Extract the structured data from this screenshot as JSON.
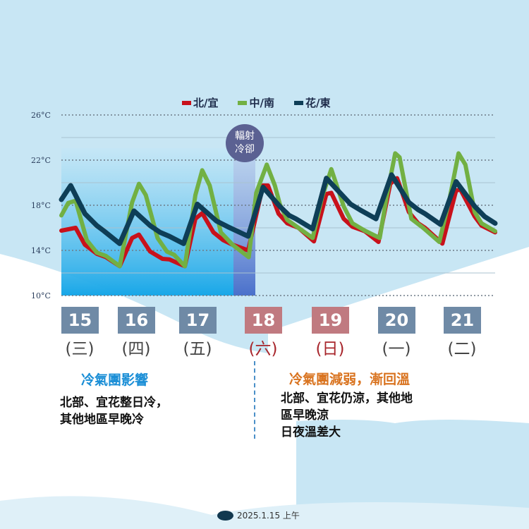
{
  "chart_data": {
    "type": "line",
    "ylim": [
      10,
      26
    ],
    "yticks": [
      "26°C",
      "22°C",
      "18°C",
      "14°C",
      "10°C"
    ],
    "ytick_values": [
      26,
      22,
      18,
      14,
      10
    ],
    "grid": true,
    "legend_position": "top",
    "x_unit": "day of month",
    "xlim": [
      15,
      22
    ],
    "series": [
      {
        "name": "北/宜",
        "color": "#c8111b",
        "points": [
          [
            15.0,
            15.75
          ],
          [
            15.23,
            16
          ],
          [
            15.38,
            14.5
          ],
          [
            15.57,
            13.7
          ],
          [
            15.72,
            13.4
          ],
          [
            15.94,
            12.6
          ],
          [
            16.14,
            15.1
          ],
          [
            16.25,
            15.4
          ],
          [
            16.43,
            13.9
          ],
          [
            16.63,
            13.25
          ],
          [
            16.74,
            13.2
          ],
          [
            16.99,
            12.6
          ],
          [
            17.16,
            16.8
          ],
          [
            17.27,
            17.3
          ],
          [
            17.45,
            15.6
          ],
          [
            17.61,
            14.9
          ],
          [
            17.76,
            14.5
          ],
          [
            18.01,
            14
          ],
          [
            18.25,
            19.75
          ],
          [
            18.33,
            19.75
          ],
          [
            18.5,
            17.25
          ],
          [
            18.64,
            16.4
          ],
          [
            18.82,
            16
          ],
          [
            19.07,
            14.8
          ],
          [
            19.27,
            19
          ],
          [
            19.35,
            19.1
          ],
          [
            19.55,
            16.8
          ],
          [
            19.69,
            16.1
          ],
          [
            19.89,
            15.7
          ],
          [
            20.11,
            14.75
          ],
          [
            20.3,
            19.9
          ],
          [
            20.41,
            20.4
          ],
          [
            20.6,
            17.4
          ],
          [
            20.75,
            16.4
          ],
          [
            20.86,
            16
          ],
          [
            21.14,
            14.6
          ],
          [
            21.36,
            19.3
          ],
          [
            21.43,
            19.4
          ],
          [
            21.66,
            17
          ],
          [
            21.77,
            16.2
          ],
          [
            21.99,
            15.6
          ]
        ]
      },
      {
        "name": "中/南",
        "color": "#72b043",
        "points": [
          [
            15.0,
            17.1
          ],
          [
            15.11,
            18.2
          ],
          [
            15.23,
            18.4
          ],
          [
            15.41,
            14.9
          ],
          [
            15.57,
            13.8
          ],
          [
            15.72,
            13.5
          ],
          [
            15.94,
            12.6
          ],
          [
            16.14,
            18.25
          ],
          [
            16.25,
            19.9
          ],
          [
            16.36,
            18.9
          ],
          [
            16.55,
            15.1
          ],
          [
            16.7,
            13.9
          ],
          [
            16.82,
            13.6
          ],
          [
            16.99,
            12.6
          ],
          [
            17.16,
            18.9
          ],
          [
            17.27,
            21.1
          ],
          [
            17.39,
            19.75
          ],
          [
            17.57,
            15.6
          ],
          [
            17.76,
            14.5
          ],
          [
            18.02,
            13.4
          ],
          [
            18.14,
            19.1
          ],
          [
            18.31,
            21.6
          ],
          [
            18.44,
            19.75
          ],
          [
            18.52,
            18.1
          ],
          [
            18.64,
            16.7
          ],
          [
            18.82,
            16
          ],
          [
            19.05,
            15.1
          ],
          [
            19.2,
            18.7
          ],
          [
            19.35,
            21.2
          ],
          [
            19.55,
            17.9
          ],
          [
            19.69,
            16.4
          ],
          [
            19.89,
            15.75
          ],
          [
            20.13,
            15.1
          ],
          [
            20.24,
            18.7
          ],
          [
            20.38,
            22.6
          ],
          [
            20.45,
            22.25
          ],
          [
            20.64,
            16.8
          ],
          [
            20.83,
            16
          ],
          [
            21.09,
            14.75
          ],
          [
            21.26,
            18.7
          ],
          [
            21.4,
            22.6
          ],
          [
            21.51,
            21.6
          ],
          [
            21.66,
            17.4
          ],
          [
            21.77,
            16.4
          ],
          [
            21.99,
            15.7
          ]
        ]
      },
      {
        "name": "花/東",
        "color": "#0e3e57",
        "points": [
          [
            15.0,
            18.5
          ],
          [
            15.15,
            19.75
          ],
          [
            15.38,
            17.25
          ],
          [
            15.57,
            16.2
          ],
          [
            15.68,
            15.75
          ],
          [
            15.94,
            14.6
          ],
          [
            16.17,
            17.5
          ],
          [
            16.43,
            16.2
          ],
          [
            16.59,
            15.6
          ],
          [
            16.74,
            15.25
          ],
          [
            16.97,
            14.6
          ],
          [
            17.19,
            18.1
          ],
          [
            17.5,
            16.6
          ],
          [
            17.68,
            16.1
          ],
          [
            18.01,
            15.25
          ],
          [
            18.25,
            19.6
          ],
          [
            18.52,
            17.9
          ],
          [
            18.67,
            17.1
          ],
          [
            18.78,
            16.8
          ],
          [
            19.05,
            15.9
          ],
          [
            19.27,
            20.4
          ],
          [
            19.66,
            18.1
          ],
          [
            19.81,
            17.6
          ],
          [
            20.07,
            16.8
          ],
          [
            20.32,
            20.7
          ],
          [
            20.6,
            18.25
          ],
          [
            20.75,
            17.6
          ],
          [
            20.86,
            17.25
          ],
          [
            21.11,
            16.3
          ],
          [
            21.36,
            20.1
          ],
          [
            21.66,
            17.9
          ],
          [
            21.82,
            17
          ],
          [
            21.99,
            16.4
          ]
        ]
      }
    ],
    "annotation": "輻射\n冷卻",
    "days": [
      {
        "date": "15",
        "weekday": "(三)",
        "weekend": false
      },
      {
        "date": "16",
        "weekday": "(四)",
        "weekend": false
      },
      {
        "date": "17",
        "weekday": "(五)",
        "weekend": false
      },
      {
        "date": "18",
        "weekday": "(六)",
        "weekend": true
      },
      {
        "date": "19",
        "weekday": "(日)",
        "weekend": true
      },
      {
        "date": "20",
        "weekday": "(一)",
        "weekend": false
      },
      {
        "date": "21",
        "weekday": "(二)",
        "weekend": false
      }
    ]
  },
  "badge": {
    "line1": "輻射",
    "line2": "冷卻",
    "color": "#5b6192"
  },
  "colors": {
    "weekday_box": "#6f8aa6",
    "weekend_box": "#c07a80",
    "weekend_text": "#a8262c",
    "left_title": "#1a8ed6",
    "right_title": "#d9731f"
  },
  "notes": {
    "left": {
      "title": "冷氣團影響",
      "lines": [
        "北部、宜花整日冷，",
        "其他地區早晚冷"
      ]
    },
    "right": {
      "title": "冷氣團減弱，漸回溫",
      "lines": [
        "北部、宜花仍涼，其他地",
        "區早晚涼",
        "日夜溫差大"
      ]
    }
  },
  "footer": {
    "date": "2025.1.15 上午"
  }
}
